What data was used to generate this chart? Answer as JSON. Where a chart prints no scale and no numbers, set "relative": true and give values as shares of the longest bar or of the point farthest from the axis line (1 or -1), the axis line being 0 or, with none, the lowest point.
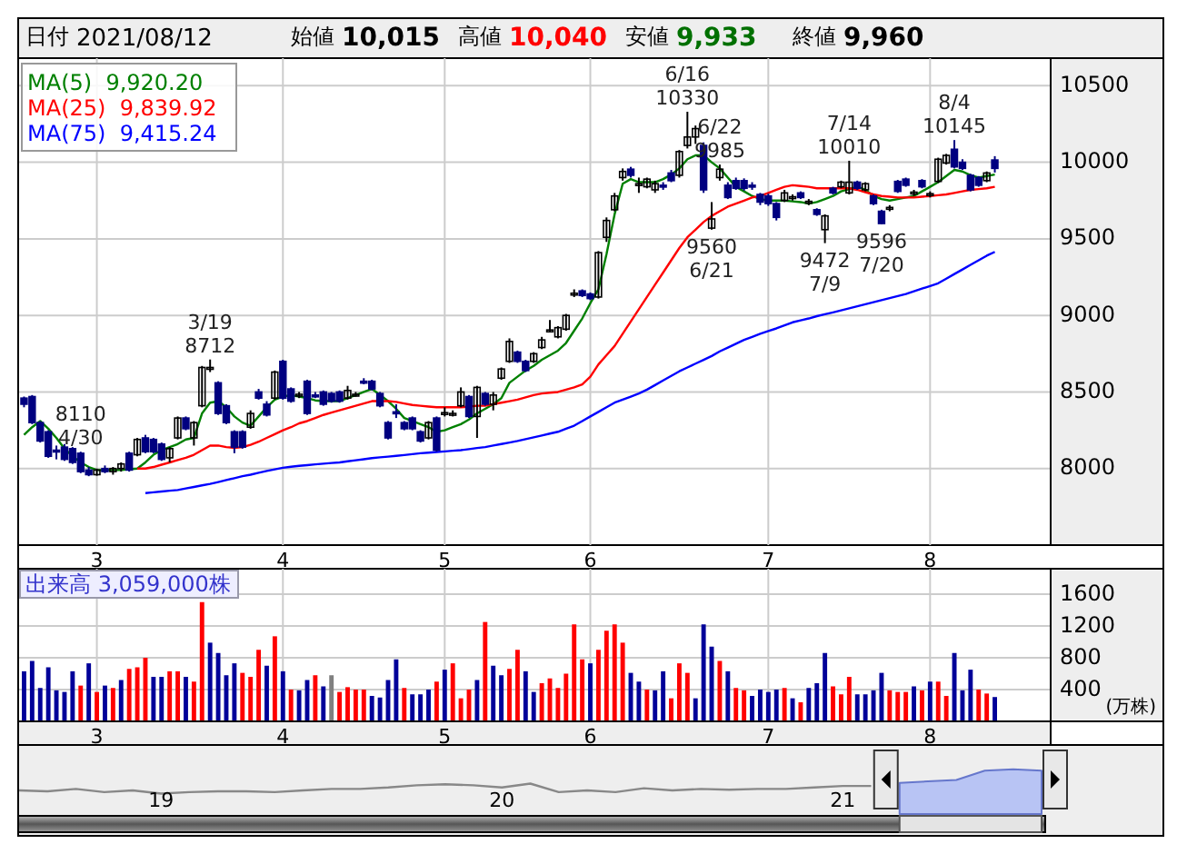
{
  "chart_data": [
    {
      "type": "candlestick",
      "annotations": [
        "日付 2021/08/12",
        "始値 10,015",
        "高値 10,040",
        "安値 9,933",
        "終値 9,960",
        {
          "text": "3/19 8712",
          "y": 8712
        },
        {
          "text": "8110 4/30",
          "y": 8110
        },
        {
          "text": "6/16 10330",
          "y": 10330
        },
        {
          "text": "9560 6/21",
          "y": 9560
        },
        {
          "text": "6/22 9985",
          "y": 9985
        },
        {
          "text": "9472 7/9",
          "y": 9472
        },
        {
          "text": "7/14 10010",
          "y": 10010
        },
        {
          "text": "9596 7/20",
          "y": 9596
        },
        {
          "text": "8/4 10145",
          "y": 10145
        }
      ],
      "categories": [
        null,
        null,
        null,
        null,
        null,
        null,
        null,
        null,
        null,
        "3",
        null,
        null,
        null,
        null,
        null,
        null,
        null,
        null,
        null,
        null,
        null,
        null,
        null,
        null,
        null,
        null,
        null,
        null,
        null,
        null,
        null,
        null,
        "4",
        null,
        null,
        null,
        null,
        null,
        null,
        null,
        null,
        null,
        null,
        null,
        null,
        null,
        null,
        null,
        null,
        null,
        null,
        null,
        "5",
        null,
        null,
        null,
        null,
        null,
        null,
        null,
        null,
        null,
        null,
        null,
        null,
        null,
        null,
        null,
        null,
        null,
        "6",
        null,
        null,
        null,
        null,
        null,
        null,
        null,
        null,
        null,
        null,
        null,
        null,
        null,
        null,
        null,
        null,
        null,
        null,
        null,
        null,
        null,
        "7",
        null,
        null,
        null,
        null,
        null,
        null,
        null,
        null,
        null,
        null,
        null,
        null,
        null,
        null,
        null,
        null,
        null,
        null,
        null,
        "8",
        null,
        null,
        null,
        null,
        null,
        null,
        null,
        null
      ],
      "ohlc": [
        [
          8460,
          8470,
          8400,
          8420
        ],
        [
          8470,
          8480,
          8290,
          8300
        ],
        [
          8300,
          8310,
          8170,
          8180
        ],
        [
          8240,
          8250,
          8070,
          8080
        ],
        [
          8120,
          8150,
          8060,
          8110
        ],
        [
          8140,
          8160,
          8050,
          8060
        ],
        [
          8130,
          8140,
          8030,
          8040
        ],
        [
          8100,
          8110,
          7970,
          7980
        ],
        [
          7990,
          8010,
          7950,
          7960
        ],
        [
          7960,
          8000,
          7953,
          7990
        ],
        [
          8000,
          8020,
          7970,
          7980
        ],
        [
          7980,
          8010,
          7960,
          8000
        ],
        [
          8000,
          8040,
          7980,
          8030
        ],
        [
          8100,
          8110,
          7980,
          7990
        ],
        [
          8090,
          8200,
          8080,
          8190
        ],
        [
          8200,
          8220,
          8100,
          8110
        ],
        [
          8190,
          8200,
          8100,
          8110
        ],
        [
          8160,
          8170,
          8050,
          8060
        ],
        [
          8070,
          8140,
          8040,
          8130
        ],
        [
          8200,
          8340,
          8190,
          8330
        ],
        [
          8330,
          8340,
          8250,
          8260
        ],
        [
          8200,
          8310,
          8150,
          8300
        ],
        [
          8410,
          8670,
          8400,
          8660
        ],
        [
          8650,
          8712,
          8630,
          8660
        ],
        [
          8560,
          8570,
          8350,
          8360
        ],
        [
          8410,
          8420,
          8290,
          8300
        ],
        [
          8240,
          8250,
          8100,
          8140
        ],
        [
          8240,
          8250,
          8130,
          8140
        ],
        [
          8270,
          8380,
          8260,
          8360
        ],
        [
          8500,
          8520,
          8450,
          8460
        ],
        [
          8420,
          8440,
          8340,
          8350
        ],
        [
          8460,
          8640,
          8450,
          8630
        ],
        [
          8700,
          8710,
          8450,
          8460
        ],
        [
          8520,
          8530,
          8430,
          8440
        ],
        [
          8480,
          8500,
          8460,
          8485
        ],
        [
          8570,
          8580,
          8350,
          8360
        ],
        [
          8480,
          8500,
          8460,
          8475
        ],
        [
          8500,
          8510,
          8410,
          8420
        ],
        [
          8490,
          8500,
          8430,
          8440
        ],
        [
          8500,
          8510,
          8430,
          8440
        ],
        [
          8460,
          8540,
          8450,
          8510
        ],
        [
          8480,
          8500,
          8470,
          8485
        ],
        [
          8570,
          8590,
          8550,
          8565
        ],
        [
          8570,
          8580,
          8510,
          8520
        ],
        [
          8490,
          8500,
          8400,
          8410
        ],
        [
          8300,
          8310,
          8190,
          8200
        ],
        [
          8370,
          8420,
          8330,
          8365
        ],
        [
          8300,
          8310,
          8250,
          8260
        ],
        [
          8330,
          8340,
          8250,
          8260
        ],
        [
          8240,
          8250,
          8170,
          8180
        ],
        [
          8200,
          8310,
          8190,
          8300
        ],
        [
          8330,
          8340,
          8110,
          8120
        ],
        [
          8360,
          8400,
          8340,
          8365
        ],
        [
          8360,
          8380,
          8340,
          8360
        ],
        [
          8410,
          8530,
          8400,
          8500
        ],
        [
          8470,
          8480,
          8330,
          8340
        ],
        [
          8340,
          8540,
          8200,
          8530
        ],
        [
          8490,
          8500,
          8410,
          8420
        ],
        [
          8420,
          8500,
          8380,
          8480
        ],
        [
          8590,
          8660,
          8580,
          8650
        ],
        [
          8700,
          8850,
          8690,
          8830
        ],
        [
          8760,
          8770,
          8690,
          8700
        ],
        [
          8700,
          8710,
          8630,
          8640
        ],
        [
          8700,
          8760,
          8690,
          8750
        ],
        [
          8790,
          8860,
          8780,
          8840
        ],
        [
          8900,
          8970,
          8890,
          8905
        ],
        [
          8860,
          8930,
          8850,
          8920
        ],
        [
          8910,
          9010,
          8900,
          9000
        ],
        [
          9140,
          9170,
          9120,
          9145
        ],
        [
          9160,
          9170,
          9120,
          9130
        ],
        [
          9140,
          9150,
          9100,
          9110
        ],
        [
          9120,
          9420,
          9110,
          9410
        ],
        [
          9510,
          9640,
          9480,
          9620
        ],
        [
          9690,
          9800,
          9680,
          9780
        ],
        [
          9900,
          9960,
          9880,
          9940
        ],
        [
          9955,
          9970,
          9900,
          9915
        ],
        [
          9850,
          9900,
          9800,
          9860
        ],
        [
          9840,
          9900,
          9830,
          9890
        ],
        [
          9820,
          9880,
          9800,
          9860
        ],
        [
          9850,
          9870,
          9820,
          9840
        ],
        [
          9930,
          9950,
          9870,
          9880
        ],
        [
          9915,
          10080,
          9900,
          10070
        ],
        [
          10110,
          10330,
          10090,
          10165
        ],
        [
          10165,
          10240,
          10120,
          10220
        ],
        [
          10110,
          10130,
          9800,
          9820
        ],
        [
          9570,
          9740,
          9560,
          9630
        ],
        [
          9900,
          9985,
          9880,
          9955
        ],
        [
          9850,
          9870,
          9760,
          9770
        ],
        [
          9880,
          9900,
          9820,
          9830
        ],
        [
          9880,
          9895,
          9815,
          9830
        ],
        [
          9850,
          9870,
          9820,
          9845
        ],
        [
          9790,
          9800,
          9720,
          9740
        ],
        [
          9780,
          9795,
          9715,
          9730
        ],
        [
          9730,
          9740,
          9620,
          9640
        ],
        [
          9750,
          9820,
          9740,
          9800
        ],
        [
          9770,
          9790,
          9750,
          9775
        ],
        [
          9800,
          9810,
          9760,
          9770
        ],
        [
          9740,
          9760,
          9720,
          9745
        ],
        [
          9690,
          9700,
          9650,
          9660
        ],
        [
          9560,
          9660,
          9472,
          9650
        ],
        [
          9830,
          9840,
          9790,
          9800
        ],
        [
          9840,
          9880,
          9830,
          9870
        ],
        [
          9800,
          10010,
          9790,
          9870
        ],
        [
          9870,
          9880,
          9820,
          9830
        ],
        [
          9820,
          9870,
          9810,
          9860
        ],
        [
          9780,
          9790,
          9720,
          9730
        ],
        [
          9680,
          9690,
          9596,
          9600
        ],
        [
          9700,
          9720,
          9680,
          9705
        ],
        [
          9875,
          9885,
          9800,
          9810
        ],
        [
          9890,
          9900,
          9840,
          9850
        ],
        [
          9800,
          9820,
          9780,
          9805
        ],
        [
          9880,
          9890,
          9830,
          9840
        ],
        [
          9790,
          9810,
          9770,
          9795
        ],
        [
          9875,
          10030,
          9865,
          10020
        ],
        [
          9995,
          10055,
          9985,
          10045
        ],
        [
          10085,
          10145,
          9960,
          9970
        ],
        [
          10000,
          10020,
          9950,
          9960
        ],
        [
          9915,
          9925,
          9810,
          9820
        ],
        [
          9900,
          9910,
          9840,
          9850
        ],
        [
          9880,
          9940,
          9870,
          9930
        ],
        [
          10015,
          10040,
          9933,
          9960
        ]
      ],
      "series": [
        {
          "type": "line",
          "name": "MA(5)  9,920.20",
          "color": "#008000",
          "values": [
            8220,
            8270,
            8310,
            8260,
            8200,
            8130,
            8080,
            8040,
            8010,
            7990,
            7990,
            7990,
            7990,
            7995,
            8000,
            8040,
            8090,
            8120,
            8140,
            8160,
            8190,
            8200,
            8360,
            8430,
            8440,
            8400,
            8340,
            8300,
            8280,
            8340,
            8400,
            8450,
            8470,
            8480,
            8470,
            8460,
            8445,
            8440,
            8440,
            8440,
            8460,
            8480,
            8500,
            8520,
            8480,
            8440,
            8390,
            8330,
            8310,
            8290,
            8270,
            8240,
            8250,
            8270,
            8290,
            8320,
            8360,
            8390,
            8420,
            8460,
            8560,
            8600,
            8640,
            8670,
            8710,
            8740,
            8770,
            8820,
            8900,
            8980,
            9080,
            9170,
            9400,
            9660,
            9860,
            9890,
            9870,
            9870,
            9870,
            9890,
            9920,
            9960,
            10020,
            10045,
            10045,
            10000,
            9960,
            9900,
            9840,
            9810,
            9780,
            9760,
            9750,
            9750,
            9750,
            9745,
            9740,
            9730,
            9740,
            9760,
            9780,
            9810,
            9825,
            9840,
            9820,
            9780,
            9760,
            9750,
            9760,
            9770,
            9780,
            9810,
            9840,
            9870,
            9910,
            9950,
            9940,
            9915,
            9900,
            9910,
            9920
          ]
        },
        {
          "type": "line",
          "name": "MA(25)  9,839.92",
          "color": "#ff0000",
          "values": [
            null,
            null,
            null,
            null,
            null,
            null,
            null,
            null,
            null,
            null,
            null,
            null,
            null,
            null,
            8000,
            8000,
            8010,
            8025,
            8040,
            8055,
            8070,
            8090,
            8120,
            8150,
            8150,
            8140,
            8135,
            8140,
            8155,
            8175,
            8200,
            8225,
            8250,
            8270,
            8295,
            8310,
            8330,
            8350,
            8365,
            8380,
            8395,
            8410,
            8425,
            8440,
            8440,
            8440,
            8435,
            8425,
            8415,
            8410,
            8405,
            8400,
            8400,
            8400,
            8400,
            8405,
            8410,
            8410,
            8420,
            8430,
            8440,
            8450,
            8465,
            8480,
            8490,
            8495,
            8500,
            8515,
            8530,
            8550,
            8600,
            8680,
            8740,
            8800,
            8880,
            8960,
            9040,
            9120,
            9200,
            9280,
            9360,
            9440,
            9510,
            9560,
            9610,
            9650,
            9680,
            9710,
            9730,
            9750,
            9770,
            9780,
            9800,
            9820,
            9840,
            9850,
            9845,
            9840,
            9830,
            9830,
            9830,
            9830,
            9830,
            9820,
            9805,
            9790,
            9780,
            9775,
            9770,
            9770,
            9770,
            9775,
            9780,
            9785,
            9790,
            9800,
            9810,
            9820,
            9825,
            9830,
            9840
          ]
        },
        {
          "type": "line",
          "name": "MA(75)  9,415.24",
          "color": "#0000ff",
          "values": [
            null,
            null,
            null,
            null,
            null,
            null,
            null,
            null,
            null,
            null,
            null,
            null,
            null,
            null,
            null,
            7840,
            7845,
            7850,
            7855,
            7860,
            7870,
            7880,
            7890,
            7900,
            7912,
            7925,
            7937,
            7950,
            7960,
            7972,
            7984,
            7995,
            8005,
            8012,
            8018,
            8022,
            8027,
            8032,
            8036,
            8040,
            8047,
            8054,
            8061,
            8068,
            8073,
            8078,
            8083,
            8088,
            8094,
            8100,
            8104,
            8108,
            8112,
            8116,
            8120,
            8127,
            8134,
            8140,
            8150,
            8160,
            8170,
            8180,
            8192,
            8204,
            8216,
            8228,
            8240,
            8260,
            8280,
            8310,
            8340,
            8370,
            8400,
            8430,
            8450,
            8470,
            8490,
            8515,
            8545,
            8575,
            8605,
            8635,
            8660,
            8685,
            8710,
            8735,
            8765,
            8790,
            8815,
            8840,
            8860,
            8880,
            8898,
            8915,
            8935,
            8955,
            8968,
            8980,
            8995,
            9008,
            9020,
            9033,
            9046,
            9060,
            9073,
            9086,
            9100,
            9113,
            9126,
            9140,
            9157,
            9175,
            9192,
            9210,
            9240,
            9270,
            9300,
            9330,
            9360,
            9390,
            9415
          ]
        }
      ],
      "ylim": [
        7500,
        10680
      ],
      "yticks": [
        8000,
        8500,
        9000,
        9500,
        10000,
        10500
      ],
      "grid": true,
      "legend": "top left"
    },
    {
      "type": "bar",
      "title": "出来高 3,059,000株",
      "ylabel": "(万株)",
      "categories": [
        null,
        null,
        null,
        null,
        null,
        null,
        null,
        null,
        null,
        "3",
        null,
        null,
        null,
        null,
        null,
        null,
        null,
        null,
        null,
        null,
        null,
        null,
        null,
        null,
        null,
        null,
        null,
        null,
        null,
        null,
        null,
        null,
        "4",
        null,
        null,
        null,
        null,
        null,
        null,
        null,
        null,
        null,
        null,
        null,
        null,
        null,
        null,
        null,
        null,
        null,
        null,
        null,
        "5",
        null,
        null,
        null,
        null,
        null,
        null,
        null,
        null,
        null,
        null,
        null,
        null,
        null,
        null,
        null,
        null,
        null,
        "6",
        null,
        null,
        null,
        null,
        null,
        null,
        null,
        null,
        null,
        null,
        null,
        null,
        null,
        null,
        null,
        null,
        null,
        null,
        null,
        null,
        null,
        "7",
        null,
        null,
        null,
        null,
        null,
        null,
        null,
        null,
        null,
        null,
        null,
        null,
        null,
        null,
        null,
        null,
        null,
        null,
        null,
        "8",
        null,
        null,
        null,
        null,
        null,
        null,
        null,
        null
      ],
      "values": [
        630,
        760,
        420,
        680,
        390,
        370,
        630,
        450,
        730,
        370,
        450,
        420,
        520,
        660,
        680,
        800,
        560,
        560,
        630,
        630,
        560,
        500,
        1500,
        990,
        860,
        580,
        730,
        610,
        560,
        900,
        700,
        1070,
        630,
        400,
        390,
        520,
        580,
        440,
        580,
        370,
        430,
        400,
        400,
        320,
        300,
        520,
        780,
        420,
        340,
        340,
        400,
        500,
        650,
        730,
        290,
        400,
        520,
        1250,
        700,
        580,
        660,
        900,
        630,
        370,
        480,
        540,
        420,
        600,
        1220,
        780,
        730,
        900,
        1140,
        1220,
        990,
        610,
        500,
        400,
        390,
        630,
        290,
        730,
        610,
        290,
        1220,
        940,
        760,
        630,
        420,
        390,
        320,
        400,
        370,
        400,
        420,
        290,
        240,
        420,
        480,
        860,
        440,
        340,
        560,
        340,
        340,
        390,
        610,
        390,
        370,
        370,
        440,
        390,
        500,
        500,
        320,
        860,
        390,
        650,
        400,
        350,
        306
      ],
      "colors": [
        "#000099",
        "#000099",
        "#000099",
        "#000099",
        "#000099",
        "#000099",
        "#000099",
        "#ff0000",
        "#000099",
        "#ff0000",
        "#000099",
        "#ff0000",
        "#000099",
        "#ff0000",
        "#ff0000",
        "#ff0000",
        "#000099",
        "#000099",
        "#ff0000",
        "#ff0000",
        "#000099",
        "#ff0000",
        "#ff0000",
        "#000099",
        "#000099",
        "#000099",
        "#000099",
        "#ff0000",
        "#ff0000",
        "#ff0000",
        "#000099",
        "#ff0000",
        "#000099",
        "#ff0000",
        "#000099",
        "#000099",
        "#ff0000",
        "#000099",
        "#808080",
        "#ff0000",
        "#ff0000",
        "#ff0000",
        "#ff0000",
        "#000099",
        "#000099",
        "#000099",
        "#000099",
        "#ff0000",
        "#000099",
        "#000099",
        "#000099",
        "#ff0000",
        "#000099",
        "#ff0000",
        "#ff0000",
        "#ff0000",
        "#000099",
        "#ff0000",
        "#000099",
        "#000099",
        "#ff0000",
        "#ff0000",
        "#000099",
        "#000099",
        "#ff0000",
        "#ff0000",
        "#ff0000",
        "#ff0000",
        "#ff0000",
        "#ff0000",
        "#000099",
        "#ff0000",
        "#ff0000",
        "#ff0000",
        "#ff0000",
        "#000099",
        "#000099",
        "#ff0000",
        "#000099",
        "#000099",
        "#ff0000",
        "#ff0000",
        "#ff0000",
        "#000099",
        "#000099",
        "#000099",
        "#ff0000",
        "#000099",
        "#ff0000",
        "#ff0000",
        "#000099",
        "#000099",
        "#000099",
        "#000099",
        "#ff0000",
        "#000099",
        "#ff0000",
        "#000099",
        "#000099",
        "#000099",
        "#ff0000",
        "#ff0000",
        "#ff0000",
        "#000099",
        "#000099",
        "#000099",
        "#000099",
        "#ff0000",
        "#ff0000",
        "#ff0000",
        "#000099",
        "#ff0000",
        "#000099",
        "#ff0000",
        "#ff0000",
        "#000099",
        "#000099",
        "#000099",
        "#ff0000",
        "#ff0000",
        "#000099"
      ],
      "ylim": [
        0,
        1920
      ],
      "yticks": [
        400,
        800,
        1200,
        1600
      ],
      "grid": true
    },
    {
      "type": "line",
      "relative": true,
      "tick_labels": "x",
      "categories": [
        null,
        null,
        null,
        null,
        null,
        "19",
        null,
        null,
        null,
        null,
        null,
        null,
        null,
        null,
        null,
        null,
        null,
        "20",
        null,
        null,
        null,
        null,
        null,
        null,
        null,
        null,
        null,
        null,
        null,
        "21",
        null,
        null,
        null,
        null,
        null,
        null,
        null
      ],
      "series": [
        {
          "type": "line",
          "color": "#888888",
          "values": [
            0.13,
            0.09,
            0.19,
            0.06,
            0.13,
            0,
            0.06,
            0.09,
            0.09,
            0.06,
            0.13,
            0.19,
            0.19,
            0.25,
            0.34,
            0.38,
            0.34,
            0.25,
            0.41,
            0.06,
            0.13,
            0.06,
            0.22,
            0.13,
            0.19,
            0.16,
            0.19,
            0.19,
            0.25,
            0.31,
            0.31,
            null,
            null,
            null,
            null,
            null,
            null
          ]
        },
        {
          "type": "area",
          "color": "#6677cc",
          "values": [
            null,
            null,
            null,
            null,
            null,
            null,
            null,
            null,
            null,
            null,
            null,
            null,
            null,
            null,
            null,
            null,
            null,
            null,
            null,
            null,
            null,
            null,
            null,
            null,
            null,
            null,
            null,
            null,
            null,
            null,
            null,
            0.44,
            0.5,
            0.56,
            0.94,
            1,
            0.94
          ]
        }
      ]
    }
  ]
}
